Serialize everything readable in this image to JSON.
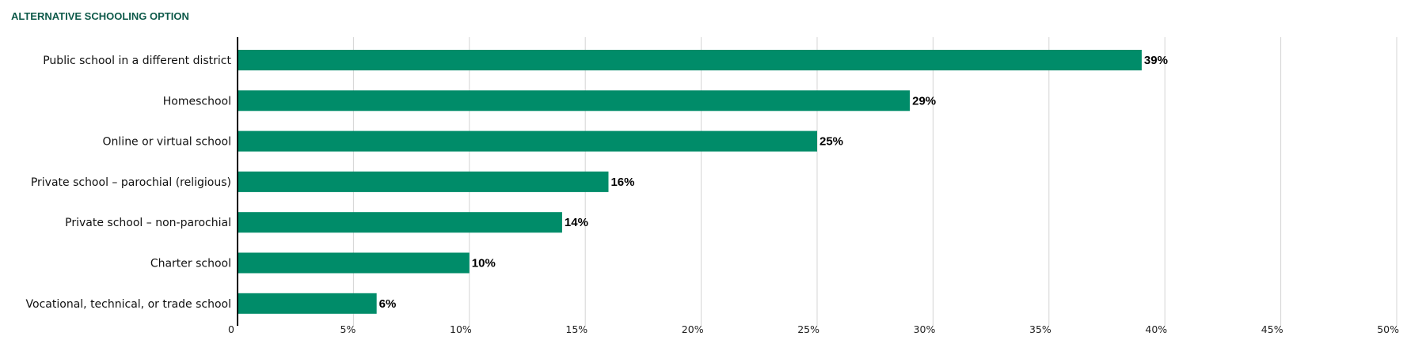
{
  "chart_data": {
    "type": "bar",
    "orientation": "horizontal",
    "title": "ALTERNATIVE SCHOOLING OPTION",
    "categories": [
      "Public school in a different district",
      "Homeschool",
      "Online or virtual school",
      "Private school – parochial (religious)",
      "Private school – non-parochial",
      "Charter school",
      "Vocational, technical, or trade school"
    ],
    "values": [
      39,
      29,
      25,
      16,
      14,
      10,
      6
    ],
    "value_labels": [
      "39%",
      "29%",
      "25%",
      "16%",
      "14%",
      "10%",
      "6%"
    ],
    "xlim": [
      0,
      50
    ],
    "x_ticks": [
      0,
      5,
      10,
      15,
      20,
      25,
      30,
      35,
      40,
      45,
      50
    ],
    "x_tick_labels": [
      "0",
      "5%",
      "10%",
      "15%",
      "20%",
      "25%",
      "30%",
      "35%",
      "40%",
      "45%",
      "50%"
    ],
    "xlabel": "",
    "ylabel": "",
    "grid": true,
    "legend": "none",
    "bar_color": "#008c69"
  }
}
